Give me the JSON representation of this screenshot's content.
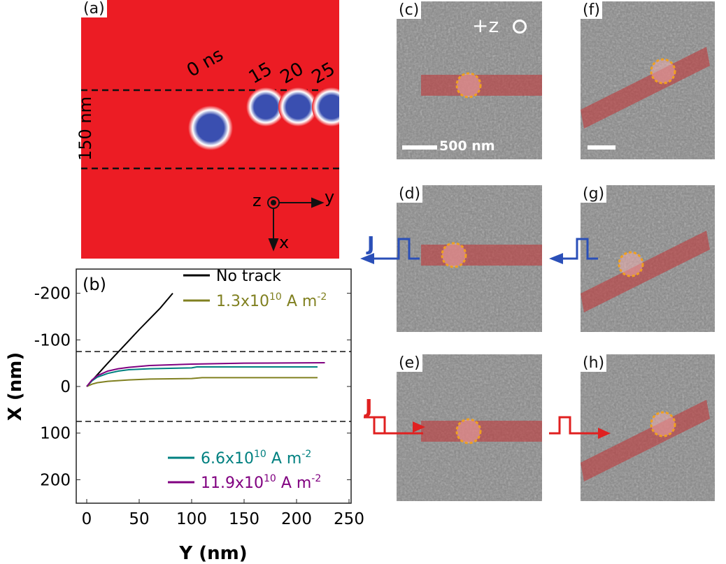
{
  "panels": {
    "a": "(a)",
    "b": "(b)",
    "c": "(c)",
    "d": "(d)",
    "e": "(e)",
    "f": "(f)",
    "g": "(g)",
    "h": "(h)"
  },
  "sim": {
    "times": [
      "0 ns",
      "15",
      "20",
      "25"
    ],
    "width_label": "150 nm",
    "axes": {
      "z": "z",
      "y": "y",
      "x": "x"
    },
    "colors": {
      "background": "#ec1c24",
      "skyrmion": "#3a4fb0"
    }
  },
  "tem": {
    "field_label": "+z",
    "scale_label": "500 nm",
    "current_label": "J",
    "colors": {
      "track": "#c0393b",
      "circle": "#f0a020",
      "pulse_left": "#2a4fb8",
      "pulse_right": "#e02020"
    }
  },
  "chart_data": {
    "type": "line",
    "xlabel": "Y (nm)",
    "ylabel": "X (nm)",
    "xlim": [
      -10,
      250
    ],
    "ylim": [
      -250,
      250
    ],
    "y_inverted": true,
    "xticks": [
      "0",
      "50",
      "100",
      "150",
      "200",
      "250"
    ],
    "yticks": [
      "-200",
      "-100",
      "0",
      "100",
      "200"
    ],
    "hlines": [
      -75,
      75
    ],
    "legend": "top-right and bottom-right",
    "series": [
      {
        "name": "No track",
        "color": "#000000",
        "x": [
          0,
          10,
          20,
          30,
          40,
          50,
          60,
          70,
          82
        ],
        "y": [
          0,
          -25,
          -50,
          -74,
          -98,
          -122,
          -145,
          -168,
          -200
        ]
      },
      {
        "name": "1.3x10^10 A m^-2",
        "label": "1.3x10",
        "exp": "10",
        "unit": " A m",
        "uexp": "-2",
        "color": "#808020",
        "x": [
          0,
          5,
          10,
          20,
          40,
          60,
          100,
          110,
          150,
          220
        ],
        "y": [
          0,
          -5,
          -8,
          -11,
          -14,
          -16,
          -17,
          -19,
          -19,
          -19
        ]
      },
      {
        "name": "6.6x10^10 A m^-2",
        "label": "6.6x10",
        "exp": "10",
        "unit": " A m",
        "uexp": "-2",
        "color": "#008080",
        "x": [
          0,
          5,
          10,
          20,
          30,
          40,
          60,
          100,
          105,
          150,
          220
        ],
        "y": [
          0,
          -12,
          -20,
          -28,
          -33,
          -36,
          -38,
          -40,
          -42,
          -42,
          -42
        ]
      },
      {
        "name": "11.9x10^10 A m^-2",
        "label": "11.9x10",
        "exp": "10",
        "unit": " A m",
        "uexp": "-2",
        "color": "#800080",
        "x": [
          0,
          5,
          10,
          20,
          30,
          40,
          60,
          100,
          150,
          227
        ],
        "y": [
          0,
          -14,
          -23,
          -33,
          -38,
          -41,
          -45,
          -48,
          -50,
          -51
        ]
      }
    ]
  }
}
